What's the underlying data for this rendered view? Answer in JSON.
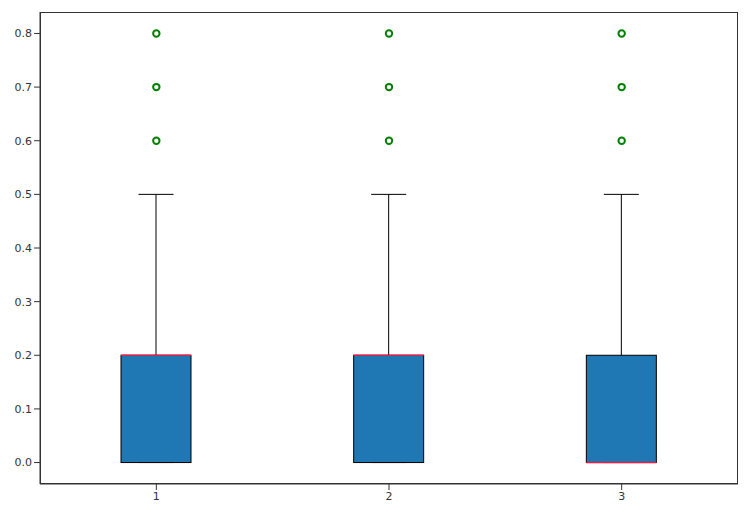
{
  "chart_data": {
    "type": "box",
    "categories": [
      "1",
      "2",
      "3"
    ],
    "color": "#1f77b4",
    "whisker_low": [
      0,
      0,
      0
    ],
    "q1": [
      0,
      0,
      0
    ],
    "median": [
      0.2,
      0.2,
      0
    ],
    "q3": [
      0.2,
      0.2,
      0.2
    ],
    "whisker_high": [
      0.5,
      0.5,
      0.5
    ],
    "outliers": [
      [
        0.6,
        0.7,
        0.8
      ],
      [
        0.6,
        0.7,
        0.8
      ],
      [
        0.6,
        0.7,
        0.8
      ]
    ],
    "marker": "o",
    "ylim": [
      -0.04,
      0.84
    ],
    "yticks": [
      {
        "value": 0,
        "label": "0.0"
      },
      0.1,
      0.2,
      0.3,
      0.4,
      0.5,
      0.6,
      0.7,
      0.8
    ],
    "grid": false
  }
}
